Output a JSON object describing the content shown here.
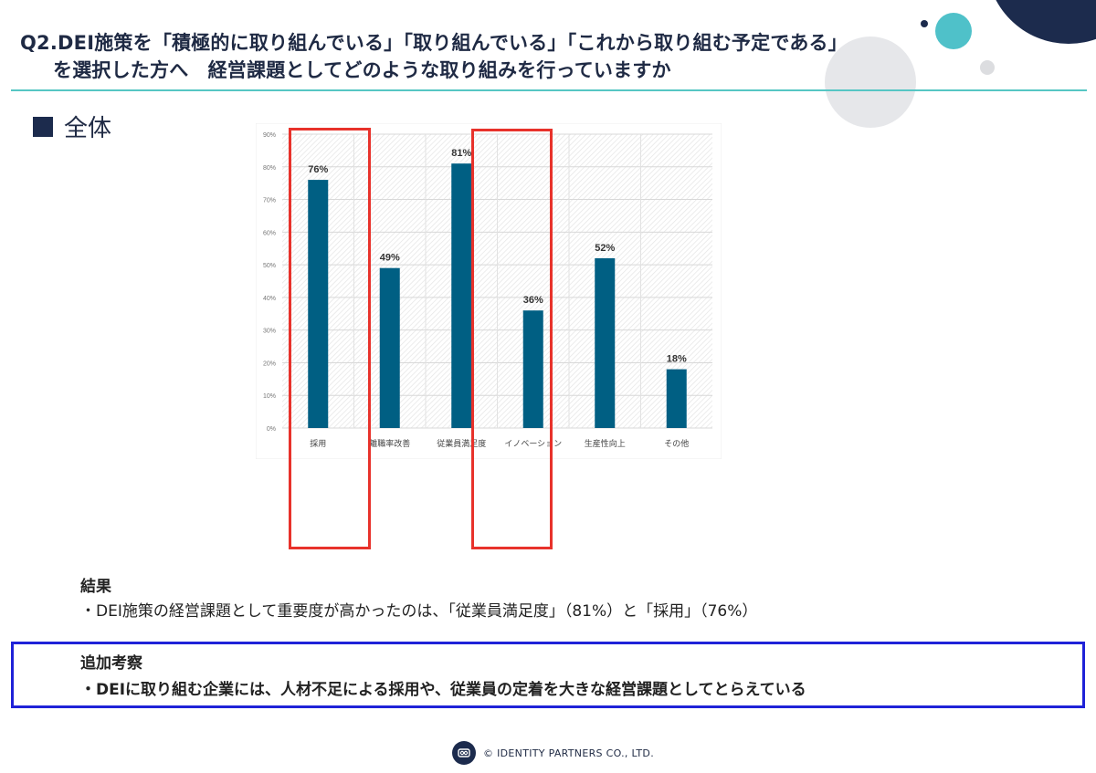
{
  "title": {
    "line1": "Q2.DEI施策を「積極的に取り組んでいる」「取り組んでいる」「これから取り組む予定である」",
    "line2": "を選択した方へ　経営課題としてどのような取り組みを行っていますか"
  },
  "section": {
    "label": "全体"
  },
  "chart_data": {
    "type": "bar",
    "categories": [
      "採用",
      "離職率改善",
      "従業員満足度",
      "イノベーション",
      "生産性向上",
      "その他"
    ],
    "values": [
      76,
      49,
      81,
      36,
      52,
      18
    ],
    "data_labels": [
      "76%",
      "49%",
      "81%",
      "36%",
      "52%",
      "18%"
    ],
    "ylim": [
      0,
      90
    ],
    "yticks": [
      "0%",
      "10%",
      "20%",
      "30%",
      "40%",
      "50%",
      "60%",
      "70%",
      "80%",
      "90%"
    ],
    "bar_color": "#005f83",
    "grid": true,
    "highlighted_categories": [
      "採用",
      "イノベーション"
    ],
    "highlight_color": "#e8322b"
  },
  "result": {
    "heading": "結果",
    "text": "・DEI施策の経営課題として重要度が高かったのは、「従業員満足度」（81%）と「採用」（76%）"
  },
  "insight": {
    "heading": "追加考察",
    "text": "・DEIに取り組む企業には、人材不足による採用や、従業員の定着を大きな経営課題としてとらえている",
    "border_color": "#1f22d8"
  },
  "footer": {
    "copyright": "© IDENTITY PARTNERS CO., LTD."
  }
}
